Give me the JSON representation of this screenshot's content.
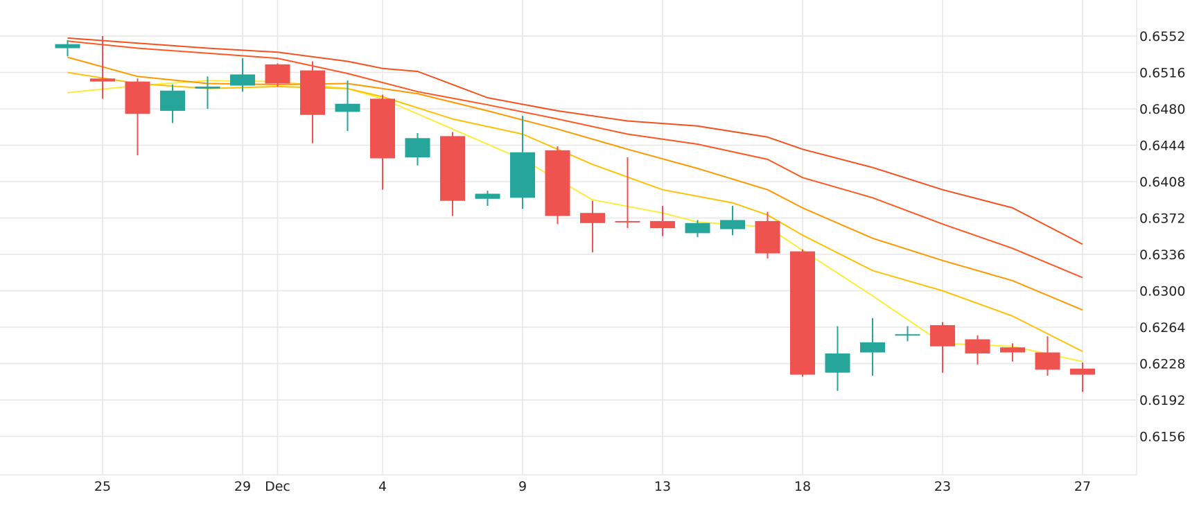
{
  "chart_data": {
    "type": "candlestick",
    "title": "",
    "xlabel": "",
    "ylabel": "",
    "ylim": [
      0.612,
      0.658
    ],
    "y_ticks": [
      0.6552,
      0.6516,
      0.648,
      0.6444,
      0.6408,
      0.6372,
      0.6336,
      0.63,
      0.6264,
      0.6228,
      0.6192,
      0.6156
    ],
    "y_tick_labels": [
      "0.6552",
      "0.6516",
      "0.6480",
      "0.6444",
      "0.6408",
      "0.6372",
      "0.6336",
      "0.6300",
      "0.6264",
      "0.6228",
      "0.6192",
      "0.6156"
    ],
    "grid": true,
    "x_tick_labels": [
      {
        "day": 1,
        "label": "25"
      },
      {
        "day": 5,
        "label": "29"
      },
      {
        "day": 6,
        "label": "Dec"
      },
      {
        "day": 9,
        "label": "4"
      },
      {
        "day": 13,
        "label": "9"
      },
      {
        "day": 17,
        "label": "13"
      },
      {
        "day": 21,
        "label": "18"
      },
      {
        "day": 25,
        "label": "23"
      },
      {
        "day": 29,
        "label": "27"
      }
    ],
    "candles": [
      {
        "day": 0,
        "open": 0.654,
        "high": 0.6548,
        "low": 0.6532,
        "close": 0.6544
      },
      {
        "day": 1,
        "open": 0.651,
        "high": 0.6552,
        "low": 0.649,
        "close": 0.6507
      },
      {
        "day": 2,
        "open": 0.6507,
        "high": 0.651,
        "low": 0.6434,
        "close": 0.6475
      },
      {
        "day": 3,
        "open": 0.6478,
        "high": 0.6504,
        "low": 0.6466,
        "close": 0.6498
      },
      {
        "day": 4,
        "open": 0.65,
        "high": 0.6512,
        "low": 0.648,
        "close": 0.6502
      },
      {
        "day": 5,
        "open": 0.6503,
        "high": 0.653,
        "low": 0.6497,
        "close": 0.6514
      },
      {
        "day": 6,
        "open": 0.6524,
        "high": 0.6525,
        "low": 0.6502,
        "close": 0.6505
      },
      {
        "day": 7,
        "open": 0.6518,
        "high": 0.6527,
        "low": 0.6446,
        "close": 0.6474
      },
      {
        "day": 8,
        "open": 0.6477,
        "high": 0.6508,
        "low": 0.6458,
        "close": 0.6485
      },
      {
        "day": 9,
        "open": 0.649,
        "high": 0.6494,
        "low": 0.64,
        "close": 0.6431
      },
      {
        "day": 10,
        "open": 0.6432,
        "high": 0.6456,
        "low": 0.6424,
        "close": 0.6451
      },
      {
        "day": 11,
        "open": 0.6453,
        "high": 0.6457,
        "low": 0.6374,
        "close": 0.6389
      },
      {
        "day": 12,
        "open": 0.6391,
        "high": 0.6399,
        "low": 0.6384,
        "close": 0.6396
      },
      {
        "day": 13,
        "open": 0.6392,
        "high": 0.6473,
        "low": 0.6381,
        "close": 0.6437
      },
      {
        "day": 14,
        "open": 0.6439,
        "high": 0.6443,
        "low": 0.6366,
        "close": 0.6374
      },
      {
        "day": 15,
        "open": 0.6377,
        "high": 0.6389,
        "low": 0.6338,
        "close": 0.6367
      },
      {
        "day": 16,
        "open": 0.6369,
        "high": 0.6432,
        "low": 0.6362,
        "close": 0.6368
      },
      {
        "day": 17,
        "open": 0.6369,
        "high": 0.6384,
        "low": 0.6354,
        "close": 0.6362
      },
      {
        "day": 18,
        "open": 0.6357,
        "high": 0.637,
        "low": 0.6353,
        "close": 0.6367
      },
      {
        "day": 19,
        "open": 0.6361,
        "high": 0.6384,
        "low": 0.6355,
        "close": 0.637
      },
      {
        "day": 20,
        "open": 0.6369,
        "high": 0.6378,
        "low": 0.6332,
        "close": 0.6337
      },
      {
        "day": 21,
        "open": 0.6339,
        "high": 0.6341,
        "low": 0.6215,
        "close": 0.6217
      },
      {
        "day": 22,
        "open": 0.6219,
        "high": 0.6265,
        "low": 0.6201,
        "close": 0.6238
      },
      {
        "day": 23,
        "open": 0.6239,
        "high": 0.6273,
        "low": 0.6216,
        "close": 0.6249
      },
      {
        "day": 24,
        "open": 0.6256,
        "high": 0.6265,
        "low": 0.625,
        "close": 0.6257
      },
      {
        "day": 25,
        "open": 0.6266,
        "high": 0.6269,
        "low": 0.6219,
        "close": 0.6245
      },
      {
        "day": 26,
        "open": 0.6252,
        "high": 0.6256,
        "low": 0.6227,
        "close": 0.6238
      },
      {
        "day": 27,
        "open": 0.6244,
        "high": 0.6248,
        "low": 0.623,
        "close": 0.6239
      },
      {
        "day": 28,
        "open": 0.6239,
        "high": 0.6255,
        "low": 0.6216,
        "close": 0.6222
      },
      {
        "day": 29,
        "open": 0.6223,
        "high": 0.6229,
        "low": 0.62,
        "close": 0.6217
      }
    ],
    "up_color": "#26a69a",
    "down_color": "#ef5350",
    "moving_averages": [
      {
        "color": "#ffeb3b",
        "values": [
          [
            0,
            0.6496
          ],
          [
            2,
            0.6503
          ],
          [
            4,
            0.6508
          ],
          [
            6,
            0.6507
          ],
          [
            8,
            0.65
          ],
          [
            9,
            0.649
          ],
          [
            11,
            0.646
          ],
          [
            13,
            0.643
          ],
          [
            14,
            0.641
          ],
          [
            15,
            0.639
          ],
          [
            17,
            0.6377
          ],
          [
            18,
            0.6368
          ],
          [
            20,
            0.6363
          ],
          [
            21,
            0.634
          ],
          [
            23,
            0.6295
          ],
          [
            25,
            0.6248
          ],
          [
            27,
            0.6245
          ],
          [
            29,
            0.623
          ]
        ]
      },
      {
        "color": "#ffc107",
        "values": [
          [
            0,
            0.6516
          ],
          [
            2,
            0.6505
          ],
          [
            4,
            0.65
          ],
          [
            6,
            0.6502
          ],
          [
            8,
            0.65
          ],
          [
            9,
            0.6492
          ],
          [
            11,
            0.647
          ],
          [
            13,
            0.6455
          ],
          [
            15,
            0.6425
          ],
          [
            17,
            0.64
          ],
          [
            19,
            0.6387
          ],
          [
            20,
            0.6375
          ],
          [
            21,
            0.6355
          ],
          [
            23,
            0.632
          ],
          [
            25,
            0.63
          ],
          [
            27,
            0.6275
          ],
          [
            29,
            0.624
          ]
        ]
      },
      {
        "color": "#ff9800",
        "values": [
          [
            0,
            0.6531
          ],
          [
            2,
            0.6512
          ],
          [
            4,
            0.6505
          ],
          [
            6,
            0.6504
          ],
          [
            8,
            0.6505
          ],
          [
            10,
            0.6495
          ],
          [
            12,
            0.6478
          ],
          [
            14,
            0.646
          ],
          [
            16,
            0.644
          ],
          [
            18,
            0.6421
          ],
          [
            20,
            0.64
          ],
          [
            21,
            0.6382
          ],
          [
            23,
            0.6352
          ],
          [
            25,
            0.633
          ],
          [
            27,
            0.631
          ],
          [
            29,
            0.6281
          ]
        ]
      },
      {
        "color": "#ff5722",
        "values": [
          [
            0,
            0.6547
          ],
          [
            2,
            0.654
          ],
          [
            4,
            0.6535
          ],
          [
            6,
            0.653
          ],
          [
            8,
            0.6515
          ],
          [
            10,
            0.6497
          ],
          [
            12,
            0.6484
          ],
          [
            14,
            0.647
          ],
          [
            16,
            0.6455
          ],
          [
            18,
            0.6445
          ],
          [
            20,
            0.643
          ],
          [
            21,
            0.6412
          ],
          [
            23,
            0.6392
          ],
          [
            25,
            0.6366
          ],
          [
            27,
            0.6342
          ],
          [
            29,
            0.6313
          ]
        ]
      },
      {
        "color": "#f4511e",
        "values": [
          [
            0,
            0.655
          ],
          [
            2,
            0.6545
          ],
          [
            4,
            0.654
          ],
          [
            6,
            0.6536
          ],
          [
            8,
            0.6527
          ],
          [
            9,
            0.652
          ],
          [
            10,
            0.6517
          ],
          [
            12,
            0.6491
          ],
          [
            14,
            0.6478
          ],
          [
            16,
            0.6468
          ],
          [
            18,
            0.6463
          ],
          [
            20,
            0.6452
          ],
          [
            21,
            0.644
          ],
          [
            23,
            0.6422
          ],
          [
            25,
            0.64
          ],
          [
            27,
            0.6382
          ],
          [
            29,
            0.6346
          ]
        ]
      }
    ]
  }
}
